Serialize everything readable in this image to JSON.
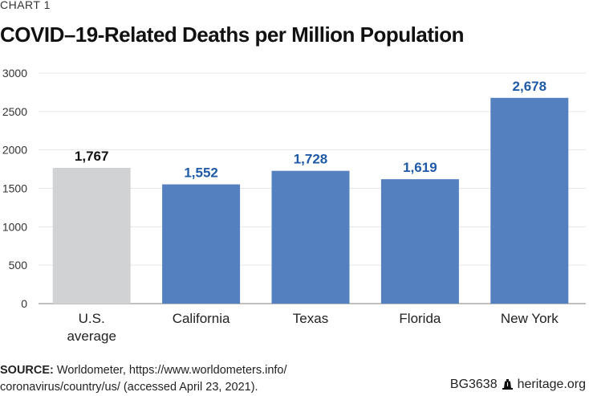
{
  "header": {
    "kicker": "CHART 1",
    "title": "COVID–19-Related Deaths per Million Population"
  },
  "chart_data": {
    "type": "bar",
    "title": "COVID–19-Related Deaths per Million Population",
    "xlabel": "",
    "ylabel": "",
    "ylim": [
      0,
      3000
    ],
    "yticks": [
      0,
      500,
      1000,
      1500,
      2000,
      2500,
      3000
    ],
    "grid": true,
    "categories": [
      [
        "U.S.",
        "average"
      ],
      [
        "California"
      ],
      [
        "Texas"
      ],
      [
        "Florida"
      ],
      [
        "New York"
      ]
    ],
    "values": [
      1767,
      1552,
      1728,
      1619,
      2678
    ],
    "data_labels": [
      "1,767",
      "1,552",
      "1,728",
      "1,619",
      "2,678"
    ],
    "bar_colors": [
      "#d1d2d4",
      "#5580c0",
      "#5580c0",
      "#5580c0",
      "#5580c0"
    ],
    "label_colors": [
      "#111111",
      "#1f5aa6",
      "#1f5aa6",
      "#1f5aa6",
      "#1f5aa6"
    ]
  },
  "footer": {
    "source_label": "SOURCE:",
    "source_line1": " Worldometer, https://www.worldometers.info/",
    "source_line2": "coronavirus/country/us/ (accessed April 23, 2021).",
    "code": "BG3638",
    "site": "heritage.org",
    "icon": "liberty-bell-icon"
  }
}
